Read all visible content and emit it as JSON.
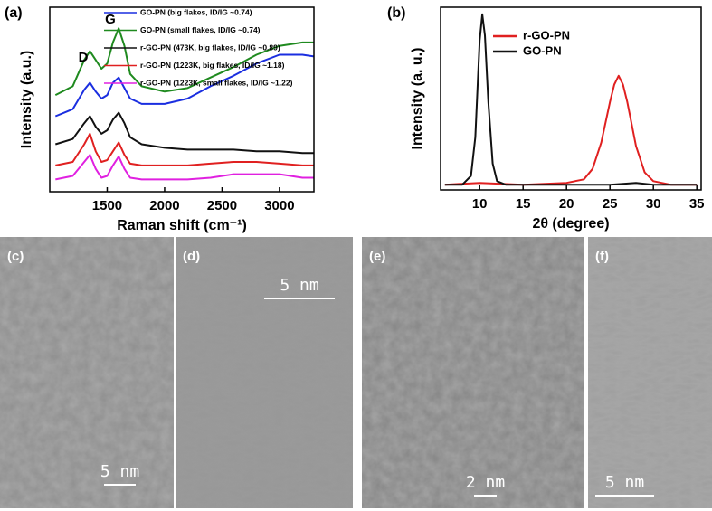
{
  "chart_data": [
    {
      "type": "line",
      "panel_label": "(a)",
      "x_label": "Raman shift (cm⁻¹)",
      "y_label": "Intensity (a.u.)",
      "annotations": [
        "D",
        "G"
      ],
      "xlim": [
        1000,
        3300
      ],
      "xticks": [
        1500,
        2000,
        2500,
        3000
      ],
      "ylim": [
        -5,
        100
      ],
      "x": [
        1050,
        1200,
        1300,
        1350,
        1400,
        1450,
        1500,
        1550,
        1600,
        1650,
        1700,
        1800,
        2000,
        2200,
        2400,
        2600,
        2800,
        3000,
        3200,
        3300
      ],
      "series": [
        {
          "name": "GO-PN (big flakes, ID/IG ~0.74)",
          "color": "#1a2ee0",
          "values": [
            38,
            42,
            53,
            57,
            52,
            48,
            50,
            57,
            60,
            54,
            48,
            45,
            45,
            48,
            55,
            61,
            68,
            73,
            73,
            72
          ]
        },
        {
          "name": "GO-PN (small flakes, ID/IG ~0.74)",
          "color": "#1f8a1f",
          "values": [
            50,
            55,
            70,
            75,
            70,
            65,
            68,
            80,
            88,
            78,
            62,
            55,
            52,
            54,
            60,
            66,
            73,
            78,
            80,
            80
          ]
        },
        {
          "name": "r-GO-PN (473K, big flakes, ID/IG ~0.89)",
          "color": "#111111",
          "values": [
            22,
            25,
            34,
            38,
            32,
            28,
            30,
            36,
            40,
            34,
            26,
            22,
            20,
            19,
            19,
            19,
            18,
            18,
            17,
            17
          ]
        },
        {
          "name": "r-GO-PN (1223K, big flakes, ID/IG ~1.18)",
          "color": "#e02020",
          "values": [
            10,
            12,
            22,
            28,
            18,
            12,
            13,
            18,
            23,
            16,
            11,
            10,
            10,
            10,
            11,
            12,
            12,
            11,
            10,
            10
          ]
        },
        {
          "name": "r-GO-PN (1223K, small flakes, ID/IG ~1.22)",
          "color": "#e020e0",
          "values": [
            2,
            4,
            12,
            16,
            8,
            3,
            4,
            10,
            15,
            8,
            3,
            2,
            2,
            2,
            3,
            5,
            5,
            5,
            3,
            3
          ]
        }
      ]
    },
    {
      "type": "line",
      "panel_label": "(b)",
      "x_label": "2θ (degree)",
      "y_label": "Intensity (a. u.)",
      "xlim": [
        5.5,
        35.5
      ],
      "xticks": [
        10,
        15,
        20,
        25,
        30,
        35
      ],
      "ylim": [
        0,
        104
      ],
      "series": [
        {
          "name": "r-GO-PN",
          "color": "#e02020",
          "x": [
            6,
            10,
            15,
            20,
            22,
            23,
            24,
            25,
            25.5,
            26,
            26.5,
            27,
            28,
            29,
            30,
            32,
            35
          ],
          "values": [
            3,
            4,
            3,
            4,
            6,
            12,
            27,
            50,
            60,
            65,
            60,
            50,
            25,
            10,
            5,
            3,
            3
          ]
        },
        {
          "name": "GO-PN",
          "color": "#111111",
          "x": [
            6,
            8,
            9,
            9.5,
            10,
            10.3,
            10.6,
            11,
            11.5,
            12,
            13,
            15,
            20,
            25,
            28,
            30,
            35
          ],
          "values": [
            3,
            3,
            8,
            30,
            85,
            100,
            88,
            50,
            15,
            5,
            3,
            3,
            3,
            3,
            4,
            3,
            3
          ]
        }
      ]
    }
  ],
  "panels": [
    {
      "label": "(c)",
      "scale_bar": "5 nm"
    },
    {
      "label": "(d)",
      "scale_bar": "5 nm"
    },
    {
      "label": "(e)",
      "scale_bar": "2 nm"
    },
    {
      "label": "(f)",
      "scale_bar": "5 nm"
    }
  ]
}
